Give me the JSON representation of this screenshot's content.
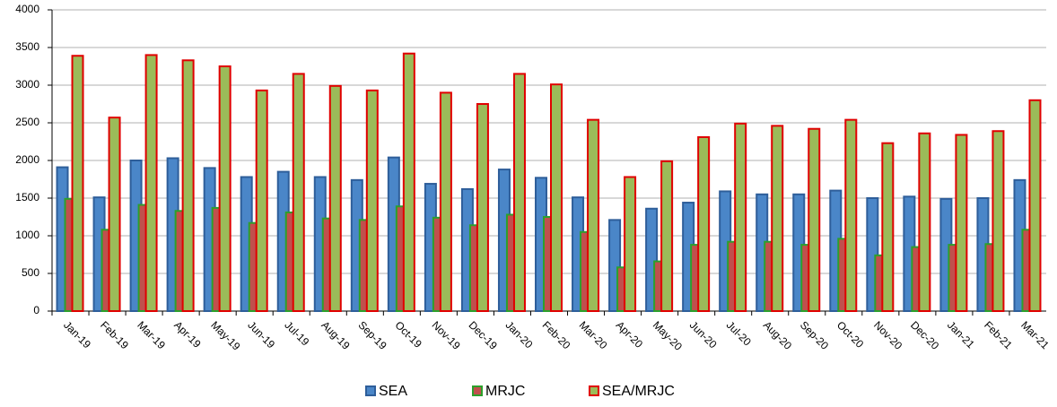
{
  "chart_data": {
    "type": "bar",
    "categories": [
      "Jan-19",
      "Feb-19",
      "Mar-19",
      "Apr-19",
      "May-19",
      "Jun-19",
      "Jul-19",
      "Aug-19",
      "Sep-19",
      "Oct-19",
      "Nov-19",
      "Dec-19",
      "Jan-20",
      "Feb-20",
      "Mar-20",
      "Apr-20",
      "May-20",
      "Jun-20",
      "Jul-20",
      "Aug-20",
      "Sep-20",
      "Oct-20",
      "Nov-20",
      "Dec-20",
      "Jan-21",
      "Feb-21",
      "Mar-21"
    ],
    "series": [
      {
        "name": "SEA",
        "color": "#4a86c8",
        "border": "#2e5e9a",
        "values": [
          1910,
          1510,
          2000,
          2030,
          1900,
          1780,
          1850,
          1780,
          1740,
          2040,
          1690,
          1620,
          1880,
          1770,
          1510,
          1210,
          1360,
          1440,
          1590,
          1550,
          1550,
          1600,
          1500,
          1520,
          1490,
          1500,
          1740
        ]
      },
      {
        "name": "MRJC",
        "color": "#c0504d",
        "border": "#2ca02c",
        "values": [
          1490,
          1080,
          1410,
          1330,
          1370,
          1170,
          1310,
          1230,
          1210,
          1390,
          1240,
          1140,
          1280,
          1250,
          1050,
          580,
          660,
          880,
          920,
          920,
          880,
          960,
          740,
          850,
          880,
          890,
          1080
        ]
      },
      {
        "name": "SEA/MRJC",
        "color": "#9bbb59",
        "border": "#e00000",
        "values": [
          3390,
          2570,
          3400,
          3330,
          3250,
          2930,
          3150,
          2990,
          2930,
          3420,
          2900,
          2750,
          3150,
          3010,
          2540,
          1780,
          1990,
          2310,
          2490,
          2460,
          2420,
          2540,
          2230,
          2360,
          2340,
          2390,
          2800
        ]
      }
    ],
    "ylim": [
      0,
      4000
    ],
    "yticks": [
      0,
      500,
      1000,
      1500,
      2000,
      2500,
      3000,
      3500,
      4000
    ],
    "grid": true,
    "legend": "bottom"
  }
}
